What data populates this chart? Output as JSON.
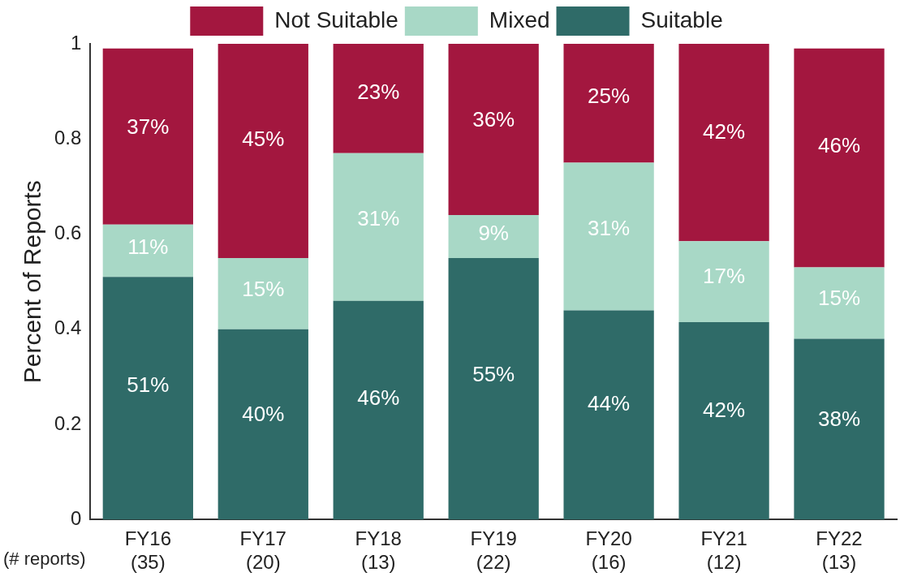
{
  "chart_data": {
    "type": "bar",
    "stacked": true,
    "ylabel": "Percent of Reports",
    "categories": [
      "FY16\n(35)",
      "FY17\n(20)",
      "FY18\n(13)",
      "FY19\n(22)",
      "FY20\n(16)",
      "FY21\n(12)",
      "FY22\n(13)"
    ],
    "series": [
      {
        "name": "Suitable",
        "color": "#2f6b68",
        "values": [
          0.51,
          0.4,
          0.46,
          0.55,
          0.44,
          0.415,
          0.38
        ],
        "value_labels": [
          "51%",
          "40%",
          "46%",
          "55%",
          "44%",
          "42%",
          "38%"
        ]
      },
      {
        "name": "Mixed",
        "color": "#a8d8c6",
        "values": [
          0.11,
          0.15,
          0.31,
          0.09,
          0.31,
          0.17,
          0.15
        ],
        "value_labels": [
          "11%",
          "15%",
          "31%",
          "9%",
          "31%",
          "17%",
          "15%"
        ]
      },
      {
        "name": "Not Suitable",
        "color": "#a3173f",
        "values": [
          0.37,
          0.45,
          0.23,
          0.36,
          0.25,
          0.415,
          0.46
        ],
        "value_labels": [
          "37%",
          "45%",
          "23%",
          "36%",
          "25%",
          "42%",
          "46%"
        ]
      }
    ],
    "ylim": [
      0,
      1
    ],
    "yticks": [
      0,
      0.2,
      0.4,
      0.6,
      0.8,
      1
    ],
    "grid": false,
    "legend": "top",
    "annotations": [
      "(# reports)"
    ]
  }
}
